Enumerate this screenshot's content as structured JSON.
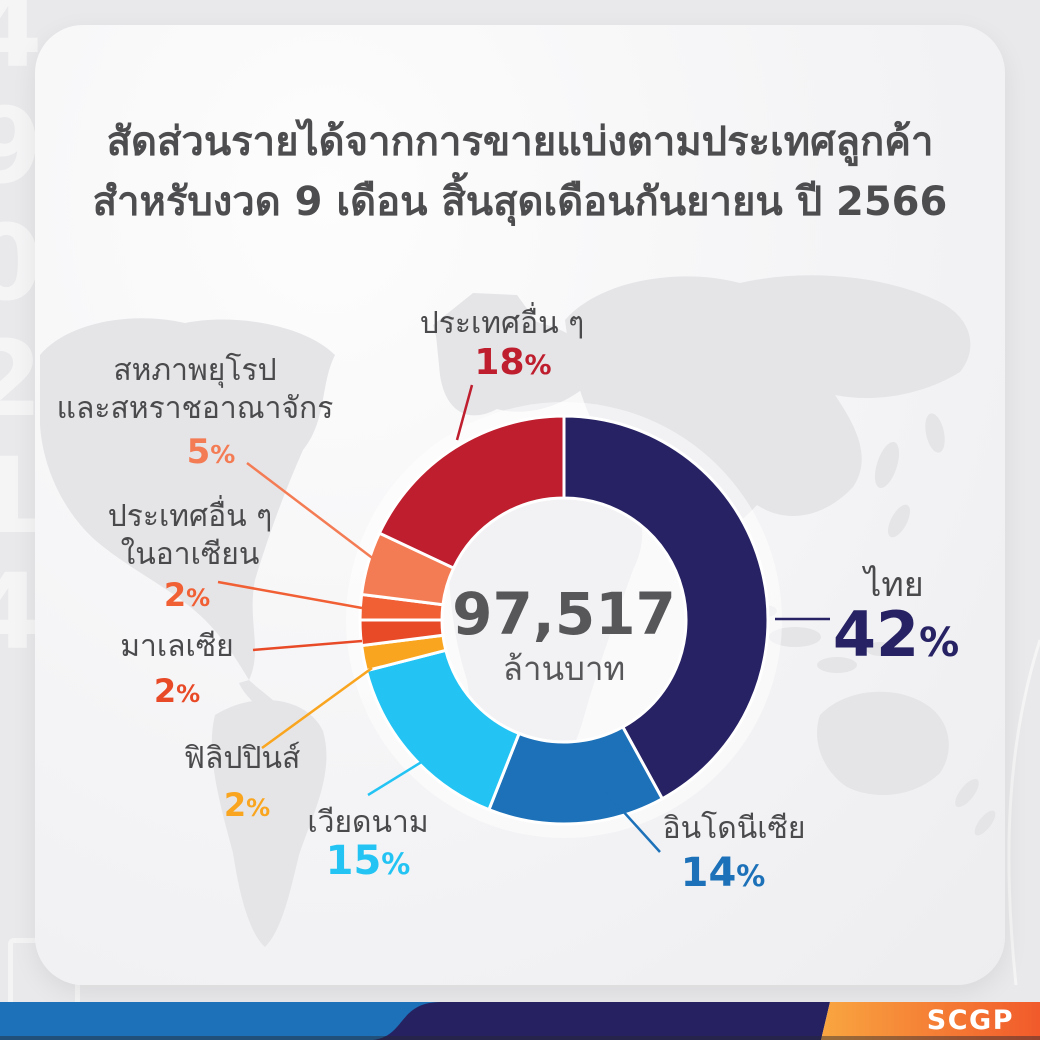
{
  "title": {
    "line1": "สัดส่วนรายได้จากการขายแบ่งตามประเทศลูกค้า",
    "line2": "สำหรับงวด 9 เดือน สิ้นสุดเดือนกันยายน ปี 2566"
  },
  "donut_center": {
    "value": "97,517",
    "unit": "ล้านบาท"
  },
  "chart_data": {
    "type": "pie",
    "subtype": "donut",
    "title": "สัดส่วนรายได้จากการขายแบ่งตามประเทศลูกค้า สำหรับงวด 9 เดือน สิ้นสุดเดือนกันยายน ปี 2566",
    "center_total": {
      "value": 97517,
      "display": "97,517",
      "unit": "ล้านบาท"
    },
    "start_angle_deg": 0,
    "direction": "clockwise",
    "legend_position": "around",
    "segments": [
      {
        "id": "thailand",
        "label": "ไทย",
        "value": 42,
        "pct_num": "42",
        "pct_sign": "%",
        "color": "#272264"
      },
      {
        "id": "indonesia",
        "label": "อินโดนีเซีย",
        "value": 14,
        "pct_num": "14",
        "pct_sign": "%",
        "color": "#1C71B8"
      },
      {
        "id": "vietnam",
        "label": "เวียดนาม",
        "value": 15,
        "pct_num": "15",
        "pct_sign": "%",
        "color": "#23C4F4"
      },
      {
        "id": "philippines",
        "label": "ฟิลิปปินส์",
        "value": 2,
        "pct_num": "2",
        "pct_sign": "%",
        "color": "#F9A51F"
      },
      {
        "id": "malaysia",
        "label": "มาเลเซีย",
        "value": 2,
        "pct_num": "2",
        "pct_sign": "%",
        "color": "#E84A28"
      },
      {
        "id": "other_asean",
        "label": "ประเทศอื่น ๆ ในอาเซียน",
        "label_line1": "ประเทศอื่น ๆ",
        "label_line2": "ในอาเซียน",
        "value": 2,
        "pct_num": "2",
        "pct_sign": "%",
        "color": "#F15F35"
      },
      {
        "id": "eu_uk",
        "label": "สหภาพยุโรป และสหราชอาณาจักร",
        "label_line1": "สหภาพยุโรป",
        "label_line2": "และสหราชอาณาจักร",
        "value": 5,
        "pct_num": "5",
        "pct_sign": "%",
        "color": "#F47C55"
      },
      {
        "id": "others",
        "label": "ประเทศอื่น ๆ",
        "value": 18,
        "pct_num": "18",
        "pct_sign": "%",
        "color": "#BE1E2D"
      }
    ]
  },
  "footer": {
    "logo_text": "SCGP",
    "bar_blue": "#1D71B8",
    "bar_navy": "#262262",
    "bar_orange_start": "#F9A640",
    "bar_orange_end": "#F15A2B"
  },
  "decor": {
    "left_digits": [
      "4",
      "9",
      "0",
      "2",
      "1",
      "4"
    ],
    "map_color": "#E5E5E8",
    "card_text_gray": "#4D4D4F"
  }
}
